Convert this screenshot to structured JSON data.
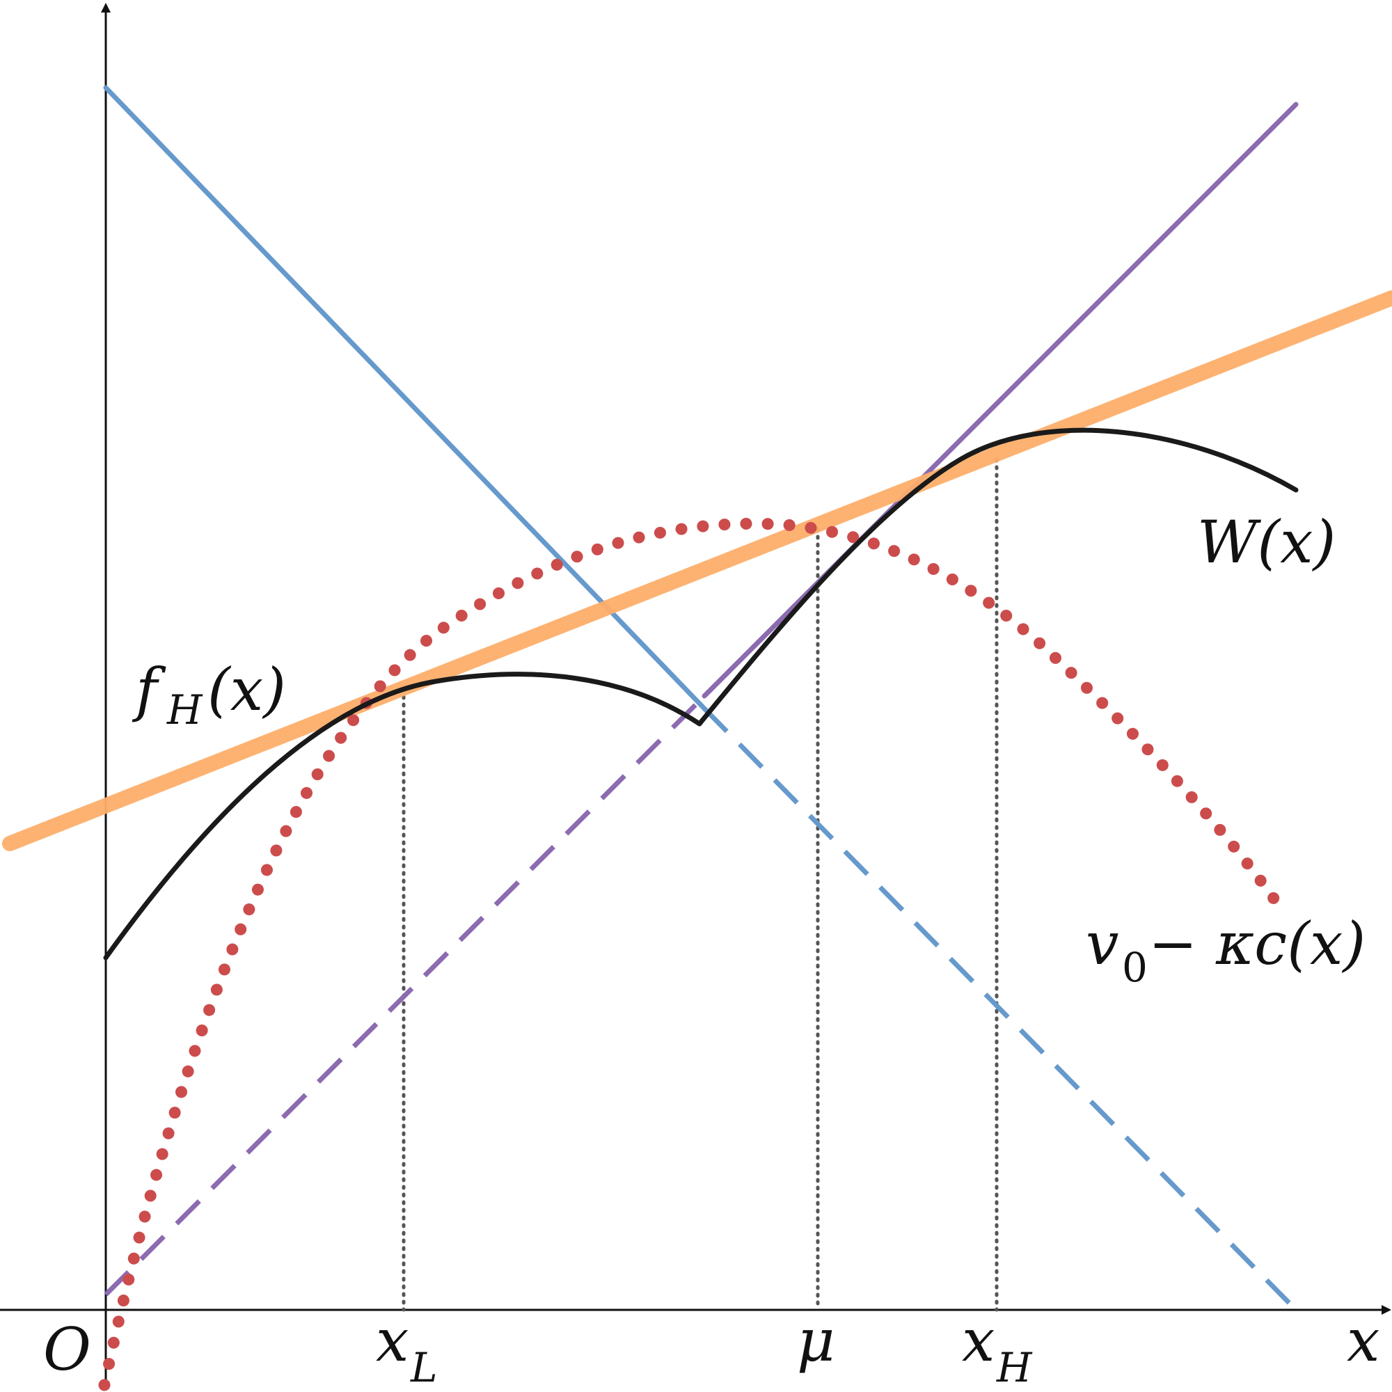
{
  "figure": {
    "axes": {
      "origin_label": "O",
      "x_axis_label": "x"
    },
    "ticks": {
      "x_L": {
        "main": "x",
        "sub": "L"
      },
      "mu": {
        "main": "μ"
      },
      "x_H": {
        "main": "x",
        "sub": "H"
      }
    },
    "curve_labels": {
      "f_H": {
        "main": "f",
        "sub": "H",
        "tail": "(x)"
      },
      "W": {
        "main": "W(x)"
      },
      "v0_kc": {
        "main": "v",
        "sub": "0",
        "tail": " − κc(x)"
      }
    },
    "colors": {
      "axis": "#111111",
      "W_curve": "#1a1a1a",
      "orange_line": "#fdae6b",
      "blue_line": "#6699cc",
      "purple_line": "#8c6bb1",
      "red_dots": "#cc4c4c",
      "guide_dots": "#555555"
    },
    "styles": {
      "W_curve": "solid",
      "orange_line": "thick-solid",
      "blue_line": "solid-then-dashed",
      "purple_line": "dashed-then-solid",
      "red_dots": "dotted",
      "guide_lines": "dotted-vertical"
    }
  }
}
